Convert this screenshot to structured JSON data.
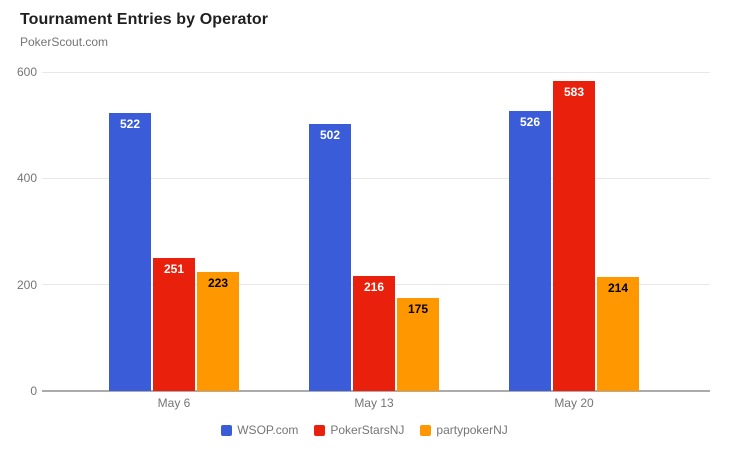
{
  "header": {
    "title": "Tournament Entries by Operator",
    "subtitle": "PokerScout.com"
  },
  "chart_data": {
    "type": "bar",
    "title": "Tournament Entries by Operator",
    "subtitle": "PokerScout.com",
    "categories": [
      "May 6",
      "May 13",
      "May 20"
    ],
    "series": [
      {
        "name": "WSOP.com",
        "color": "#3B5CD9",
        "label_color": "#FFFFFF",
        "values": [
          522,
          502,
          526
        ]
      },
      {
        "name": "PokerStarsNJ",
        "color": "#E8200C",
        "label_color": "#FFFFFF",
        "values": [
          251,
          216,
          583
        ]
      },
      {
        "name": "partypokerNJ",
        "color": "#FF9800",
        "label_color": "#000000",
        "values": [
          223,
          175,
          214
        ]
      }
    ],
    "xlabel": "",
    "ylabel": "",
    "ylim": [
      0,
      600
    ],
    "yticks": [
      0,
      200,
      400,
      600
    ],
    "grid": true,
    "bar_labels": true,
    "legend_position": "bottom",
    "colors": {
      "grid_line": "#E8E8E8",
      "axis_line": "#ABABAB",
      "tick_label": "#757575",
      "legend_label": "#757575"
    }
  }
}
